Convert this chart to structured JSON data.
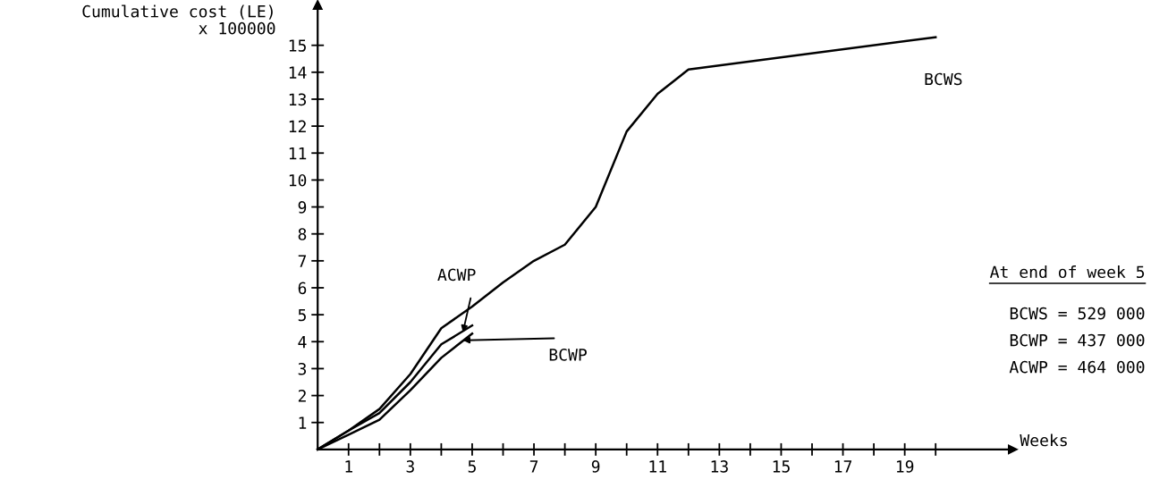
{
  "chart_data": {
    "type": "line",
    "ylabel": "Cumulative cost (LE)\nx 100000",
    "xlabel": "Weeks",
    "xlim": [
      0,
      22.5
    ],
    "ylim": [
      0,
      16.5
    ],
    "xticks": [
      {
        "value": 1,
        "label": "1"
      },
      {
        "value": 2,
        "label": null
      },
      {
        "value": 3,
        "label": "3"
      },
      {
        "value": 4,
        "label": null
      },
      {
        "value": 5,
        "label": "5"
      },
      {
        "value": 6,
        "label": null
      },
      {
        "value": 7,
        "label": "7"
      },
      {
        "value": 8,
        "label": null
      },
      {
        "value": 9,
        "label": "9"
      },
      {
        "value": 10,
        "label": null
      },
      {
        "value": 11,
        "label": "11"
      },
      {
        "value": 12,
        "label": null
      },
      {
        "value": 13,
        "label": "13"
      },
      {
        "value": 14,
        "label": null
      },
      {
        "value": 15,
        "label": "15"
      },
      {
        "value": 16,
        "label": null
      },
      {
        "value": 17,
        "label": "17"
      },
      {
        "value": 18,
        "label": null
      },
      {
        "value": 19,
        "label": "19"
      },
      {
        "value": 20,
        "label": null
      }
    ],
    "yticks": [
      1,
      2,
      3,
      4,
      5,
      6,
      7,
      8,
      9,
      10,
      11,
      12,
      13,
      14,
      15
    ],
    "series": [
      {
        "name": "BCWS",
        "color": "#000000",
        "x": [
          0,
          1,
          2,
          3,
          4,
          5,
          6,
          7,
          8,
          9,
          10,
          11,
          12,
          20
        ],
        "values": [
          0,
          0.7,
          1.5,
          2.8,
          4.5,
          5.3,
          6.2,
          7.0,
          7.6,
          9.0,
          11.8,
          13.2,
          14.1,
          15.3
        ]
      },
      {
        "name": "ACWP",
        "color": "#000000",
        "x": [
          0,
          1,
          2,
          3,
          4,
          5
        ],
        "values": [
          0,
          0.7,
          1.35,
          2.5,
          3.9,
          4.6
        ]
      },
      {
        "name": "BCWP",
        "color": "#000000",
        "x": [
          0,
          1,
          2,
          3,
          4,
          5
        ],
        "values": [
          0,
          0.55,
          1.1,
          2.2,
          3.4,
          4.3
        ]
      }
    ],
    "annotations": [
      "At end of week 5",
      "BCWS = 529 000",
      "BCWP = 437 000",
      "ACWP = 464 000"
    ],
    "legend": false,
    "grid": false,
    "marker": "none",
    "line_style": "solid"
  }
}
